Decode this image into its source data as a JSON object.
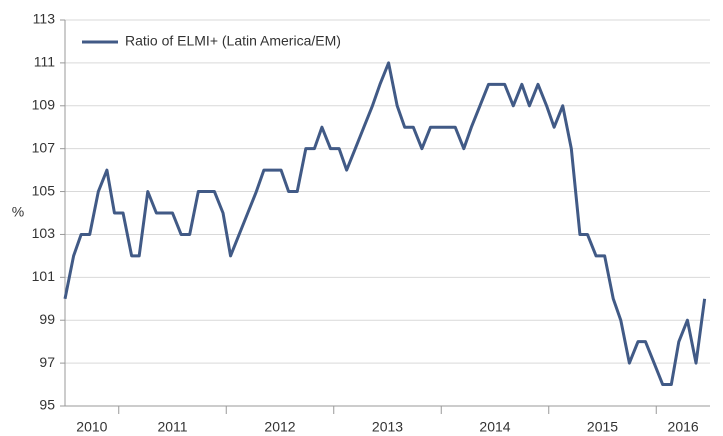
{
  "chart_data": {
    "type": "line",
    "ylabel": "%",
    "x": [
      2010.5,
      2010.58,
      2010.65,
      2010.73,
      2010.81,
      2010.89,
      2010.96,
      2011.04,
      2011.12,
      2011.19,
      2011.27,
      2011.35,
      2011.43,
      2011.5,
      2011.58,
      2011.66,
      2011.74,
      2011.81,
      2011.89,
      2011.97,
      2012.04,
      2012.12,
      2012.2,
      2012.28,
      2012.35,
      2012.43,
      2012.51,
      2012.58,
      2012.66,
      2012.74,
      2012.82,
      2012.89,
      2012.97,
      2013.05,
      2013.12,
      2013.2,
      2013.28,
      2013.36,
      2013.43,
      2013.51,
      2013.59,
      2013.66,
      2013.74,
      2013.82,
      2013.9,
      2013.97,
      2014.05,
      2014.13,
      2014.21,
      2014.28,
      2014.36,
      2014.44,
      2014.51,
      2014.59,
      2014.67,
      2014.75,
      2014.82,
      2014.9,
      2014.98,
      2015.05,
      2015.13,
      2015.21,
      2015.29,
      2015.36,
      2015.44,
      2015.52,
      2015.6,
      2015.67,
      2015.75,
      2015.83,
      2015.9,
      2015.98,
      2016.06,
      2016.14,
      2016.21,
      2016.29,
      2016.37,
      2016.45
    ],
    "series": [
      {
        "name": "Ratio of ELMI+ (Latin America/EM)",
        "color": "#415a86",
        "values": [
          100,
          102,
          103,
          103,
          105,
          106,
          104,
          104,
          102,
          102,
          105,
          104,
          104,
          104,
          103,
          103,
          105,
          105,
          105,
          104,
          102,
          103,
          104,
          105,
          106,
          106,
          106,
          105,
          105,
          107,
          107,
          108,
          107,
          107,
          106,
          107,
          108,
          109,
          110,
          111,
          109,
          108,
          108,
          107,
          108,
          108,
          108,
          108,
          107,
          108,
          109,
          110,
          110,
          110,
          109,
          110,
          109,
          110,
          109,
          108,
          109,
          107,
          103,
          103,
          102,
          102,
          100,
          99,
          97,
          98,
          98,
          97,
          96,
          96,
          98,
          99,
          97,
          100
        ]
      }
    ],
    "xlim": [
      2010.5,
      2016.5
    ],
    "xticks": [
      2011,
      2012,
      2013,
      2014,
      2015,
      2016
    ],
    "year_labels": [
      "2010",
      "2011",
      "2012",
      "2013",
      "2014",
      "2015",
      "2016"
    ],
    "ylim": [
      95,
      113
    ],
    "yticks": [
      95,
      97,
      99,
      101,
      103,
      105,
      107,
      109,
      111,
      113
    ],
    "grid": true,
    "legend": "top-left"
  }
}
